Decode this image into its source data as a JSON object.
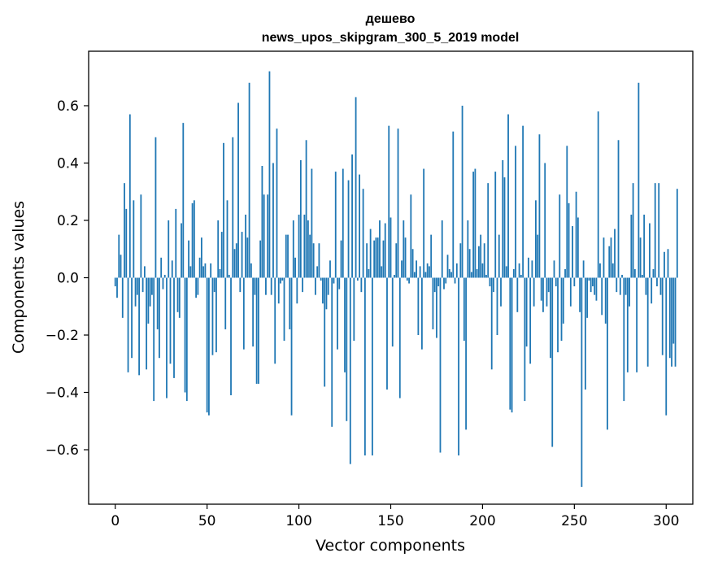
{
  "chart_data": {
    "type": "bar",
    "title_line1": "дешево",
    "title_line2": "news_upos_skipgram_300_5_2019 model",
    "xlabel": "Vector components",
    "ylabel": "Components values",
    "xlim": [
      -14.5,
      314.5
    ],
    "ylim": [
      -0.79,
      0.79
    ],
    "xticks": [
      0,
      50,
      100,
      150,
      200,
      250,
      300
    ],
    "xtick_labels": [
      "0",
      "50",
      "100",
      "150",
      "200",
      "250",
      "300"
    ],
    "yticks": [
      -0.6,
      -0.4,
      -0.2,
      0.0,
      0.2,
      0.4,
      0.6
    ],
    "ytick_labels": [
      "−0.6",
      "−0.4",
      "−0.2",
      "0.0",
      "0.2",
      "0.4",
      "0.6"
    ],
    "bar_color": "#1f77b4",
    "values": [
      -0.03,
      -0.07,
      0.15,
      0.08,
      -0.14,
      0.33,
      0.24,
      -0.33,
      0.57,
      -0.28,
      0.27,
      -0.1,
      -0.06,
      -0.34,
      0.29,
      -0.05,
      0.04,
      -0.32,
      -0.16,
      -0.1,
      -0.06,
      -0.43,
      0.49,
      -0.18,
      -0.28,
      0.07,
      -0.04,
      0.01,
      -0.42,
      0.2,
      -0.3,
      0.06,
      -0.35,
      0.24,
      -0.12,
      -0.14,
      0.19,
      0.54,
      -0.4,
      -0.43,
      0.13,
      0.04,
      0.26,
      0.27,
      -0.07,
      -0.06,
      0.07,
      0.14,
      0.04,
      0.05,
      -0.47,
      -0.48,
      0.05,
      -0.27,
      -0.05,
      -0.26,
      0.2,
      0.03,
      0.16,
      0.47,
      -0.18,
      0.27,
      0.01,
      -0.41,
      0.49,
      0.1,
      0.12,
      0.61,
      -0.05,
      0.16,
      -0.25,
      0.22,
      0.14,
      0.68,
      0.05,
      -0.24,
      -0.06,
      -0.37,
      -0.37,
      0.13,
      0.39,
      0.29,
      -0.06,
      0.29,
      0.72,
      -0.06,
      0.4,
      -0.3,
      0.52,
      -0.09,
      -0.02,
      -0.01,
      -0.22,
      0.15,
      0.15,
      -0.18,
      -0.48,
      0.2,
      0.07,
      -0.09,
      0.22,
      0.41,
      -0.05,
      0.22,
      0.48,
      0.2,
      0.15,
      0.38,
      0.12,
      -0.06,
      0.04,
      0.12,
      -0.01,
      -0.09,
      -0.38,
      -0.11,
      -0.06,
      0.06,
      -0.52,
      -0.02,
      0.37,
      -0.25,
      -0.04,
      0.13,
      0.38,
      -0.33,
      -0.5,
      0.34,
      -0.65,
      0.43,
      -0.22,
      0.63,
      -0.01,
      0.36,
      -0.05,
      0.31,
      -0.62,
      0.12,
      0.03,
      0.17,
      -0.62,
      0.13,
      0.14,
      0.14,
      0.2,
      0.04,
      0.13,
      0.19,
      -0.39,
      0.53,
      0.21,
      -0.24,
      0.01,
      0.12,
      0.52,
      -0.42,
      0.06,
      0.2,
      0.14,
      -0.01,
      -0.02,
      0.29,
      0.1,
      0.02,
      0.06,
      -0.2,
      0.04,
      -0.25,
      0.38,
      0.02,
      0.05,
      0.04,
      0.15,
      -0.18,
      -0.05,
      -0.21,
      -0.03,
      -0.61,
      0.2,
      -0.04,
      -0.02,
      0.08,
      0.03,
      0.02,
      0.51,
      -0.02,
      0.05,
      -0.62,
      0.12,
      0.6,
      -0.22,
      -0.53,
      0.2,
      0.1,
      0.02,
      0.37,
      0.38,
      0.03,
      0.11,
      0.15,
      0.05,
      0.12,
      0.01,
      0.33,
      -0.03,
      -0.32,
      -0.05,
      0.37,
      -0.2,
      0.15,
      -0.1,
      0.41,
      0.35,
      0.04,
      0.57,
      -0.46,
      -0.47,
      0.03,
      0.46,
      -0.12,
      0.05,
      0.01,
      0.53,
      -0.43,
      -0.24,
      0.07,
      -0.3,
      0.06,
      -0.1,
      0.27,
      0.15,
      0.5,
      -0.08,
      -0.12,
      0.4,
      -0.1,
      -0.05,
      -0.28,
      -0.59,
      0.06,
      -0.03,
      -0.26,
      0.29,
      -0.22,
      -0.16,
      0.03,
      0.46,
      0.26,
      -0.1,
      0.18,
      -0.03,
      0.3,
      0.21,
      -0.12,
      -0.73,
      0.06,
      -0.39,
      -0.14,
      -0.01,
      -0.05,
      -0.03,
      -0.06,
      -0.08,
      0.58,
      0.05,
      -0.13,
      0.14,
      -0.16,
      -0.53,
      0.11,
      0.14,
      0.05,
      0.17,
      -0.05,
      0.48,
      -0.06,
      0.01,
      -0.43,
      -0.06,
      -0.33,
      -0.1,
      0.22,
      0.33,
      0.03,
      -0.33,
      0.68,
      0.14,
      0.01,
      0.22,
      -0.06,
      -0.31,
      0.19,
      -0.09,
      0.03,
      0.33,
      -0.03,
      0.33,
      -0.06,
      -0.27,
      0.09,
      -0.48,
      0.1,
      -0.28,
      -0.31,
      -0.23,
      -0.31,
      0.31
    ]
  }
}
